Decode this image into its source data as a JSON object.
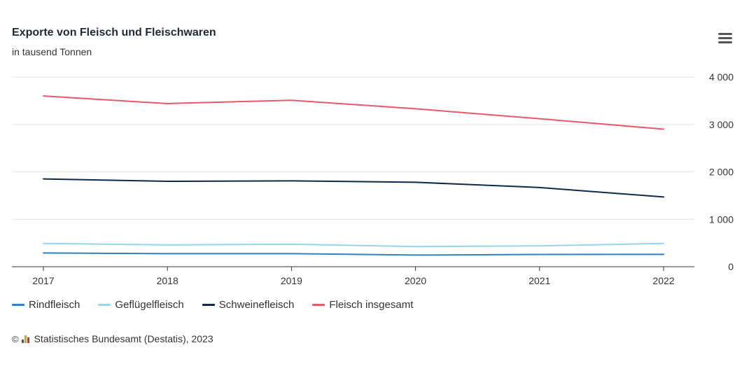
{
  "chart_data": {
    "type": "line",
    "title": "Exporte von Fleisch und Fleischwaren",
    "subtitle": "in tausend Tonnen",
    "categories": [
      "2017",
      "2018",
      "2019",
      "2020",
      "2021",
      "2022"
    ],
    "y_ticks": [
      0,
      1000,
      2000,
      3000,
      4000
    ],
    "y_tick_labels": [
      "0",
      "1 000",
      "2 000",
      "3 000",
      "4 000"
    ],
    "ylim": [
      0,
      4000
    ],
    "y_axis_position": "right",
    "grid": true,
    "legend_position": "bottom-left",
    "series": [
      {
        "name": "Rindfleisch",
        "color": "#2f7fc1",
        "values": [
          290,
          275,
          275,
          245,
          258,
          260
        ]
      },
      {
        "name": "Geflügelfleisch",
        "color": "#92d5ec",
        "values": [
          490,
          460,
          475,
          425,
          440,
          490
        ]
      },
      {
        "name": "Schweinefleisch",
        "color": "#0d2a4a",
        "values": [
          1850,
          1800,
          1810,
          1780,
          1670,
          1470
        ]
      },
      {
        "name": "Fleisch insgesamt",
        "color": "#e8596a",
        "values": [
          3600,
          3440,
          3510,
          3330,
          3120,
          2900
        ]
      }
    ]
  },
  "credits": {
    "copyright_symbol": "©",
    "text": "Statistisches Bundesamt (Destatis), 2023"
  },
  "menu": {
    "icon": "hamburger-menu-icon"
  }
}
